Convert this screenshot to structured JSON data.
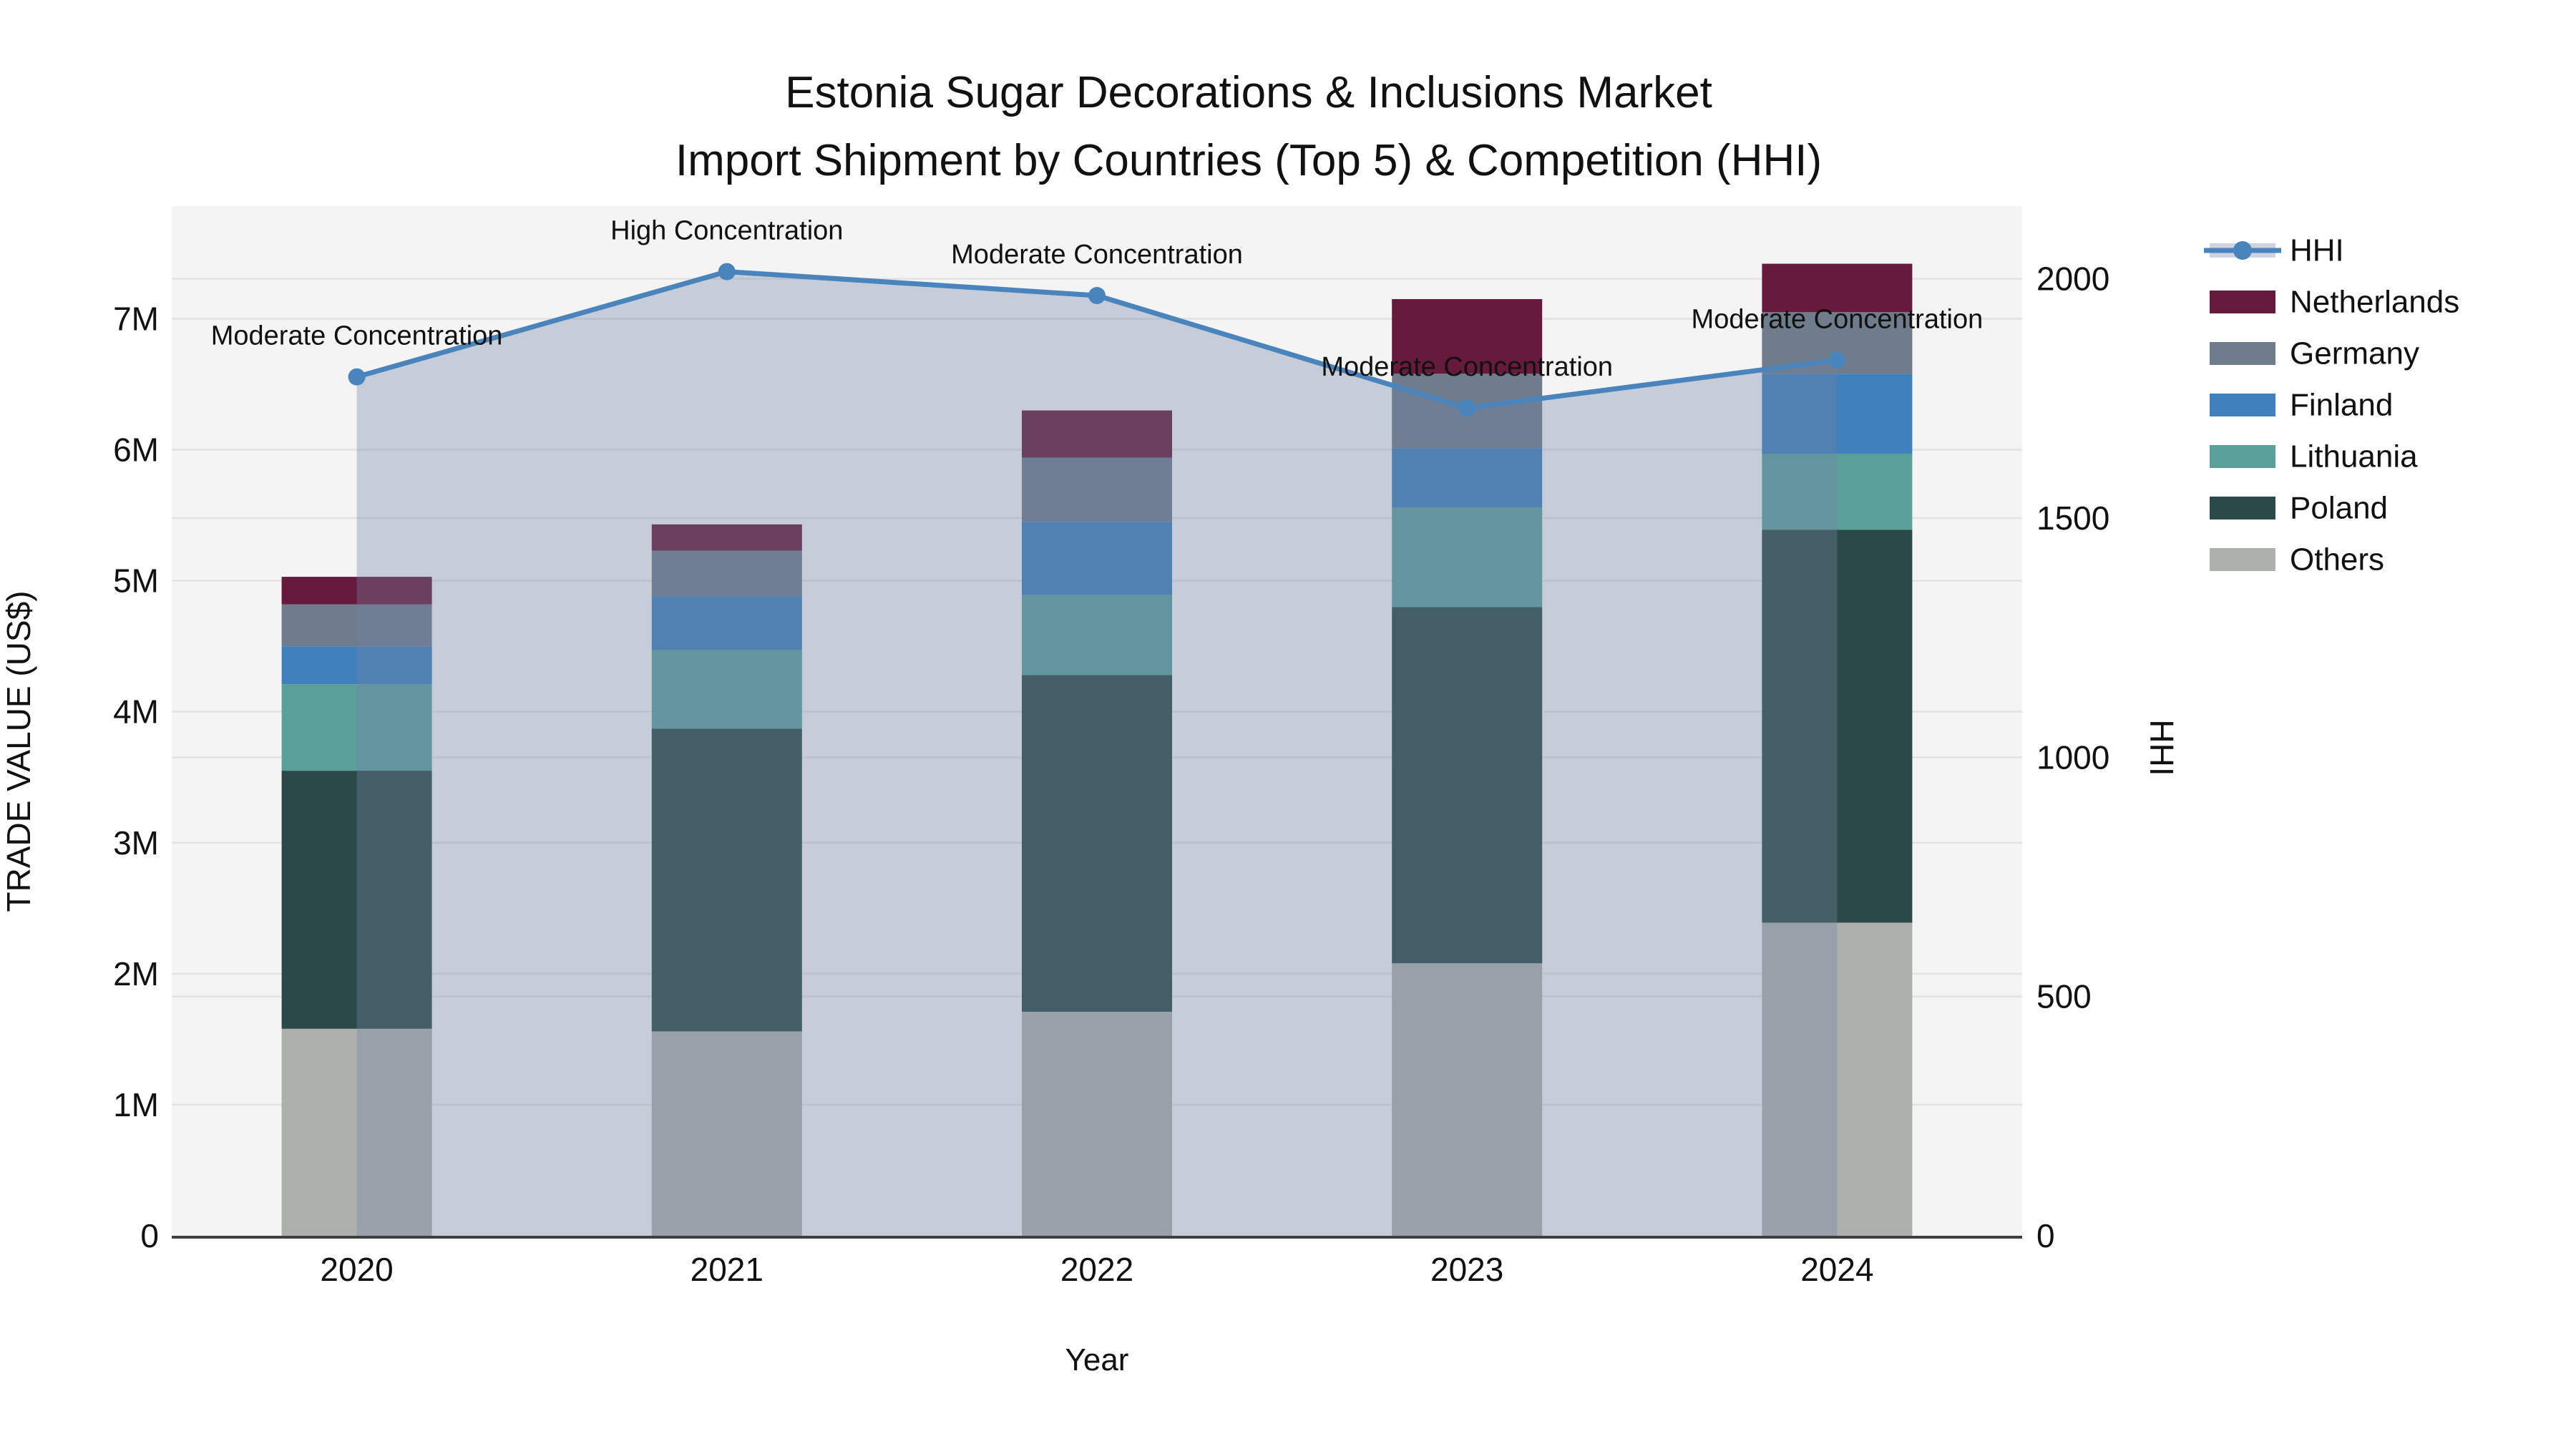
{
  "title": {
    "line1": "Estonia Sugar Decorations & Inclusions Market",
    "line2": "Import Shipment by Countries (Top 5) & Competition (HHI)"
  },
  "axes": {
    "x": {
      "label": "Year",
      "categories": [
        "2020",
        "2021",
        "2022",
        "2023",
        "2024"
      ]
    },
    "y_left": {
      "label": "TRADE VALUE (US$)",
      "ticks": [
        {
          "label": "0",
          "value": 0
        },
        {
          "label": "1M",
          "value": 1
        },
        {
          "label": "2M",
          "value": 2
        },
        {
          "label": "3M",
          "value": 3
        },
        {
          "label": "4M",
          "value": 4
        },
        {
          "label": "5M",
          "value": 5
        },
        {
          "label": "6M",
          "value": 6
        },
        {
          "label": "7M",
          "value": 7
        }
      ]
    },
    "y_right": {
      "label": "HHI",
      "ticks": [
        {
          "label": "0",
          "value": 0
        },
        {
          "label": "500",
          "value": 500
        },
        {
          "label": "1000",
          "value": 1000
        },
        {
          "label": "1500",
          "value": 1500
        },
        {
          "label": "2000",
          "value": 2000
        }
      ]
    }
  },
  "legend": [
    {
      "label": "HHI",
      "type": "line",
      "color": "#4a84bd"
    },
    {
      "label": "Netherlands",
      "type": "swatch",
      "color": "#671b3c"
    },
    {
      "label": "Germany",
      "type": "swatch",
      "color": "#6e7c8b"
    },
    {
      "label": "Finland",
      "type": "swatch",
      "color": "#4080bc"
    },
    {
      "label": "Lithuania",
      "type": "swatch",
      "color": "#5b9f9b"
    },
    {
      "label": "Poland",
      "type": "swatch",
      "color": "#2b4a47"
    },
    {
      "label": "Others",
      "type": "swatch",
      "color": "#aeb0ae"
    }
  ],
  "chart_data": {
    "type": "bar",
    "subtype": "stacked-bars-with-secondary-line",
    "categories": [
      "2020",
      "2021",
      "2022",
      "2023",
      "2024"
    ],
    "bar_value_unit": "million US$",
    "stack_order_bottom_to_top": [
      "Others",
      "Poland",
      "Lithuania",
      "Finland",
      "Germany",
      "Netherlands"
    ],
    "series": [
      {
        "name": "Others",
        "color": "#aeb0ae",
        "values": [
          1.58,
          1.56,
          1.71,
          2.08,
          2.39
        ]
      },
      {
        "name": "Poland",
        "color": "#2b4a47",
        "values": [
          1.97,
          2.31,
          2.57,
          2.72,
          3.0
        ]
      },
      {
        "name": "Lithuania",
        "color": "#5b9f9b",
        "values": [
          0.66,
          0.6,
          0.61,
          0.76,
          0.58
        ]
      },
      {
        "name": "Finland",
        "color": "#4080bc",
        "values": [
          0.29,
          0.41,
          0.56,
          0.45,
          0.61
        ]
      },
      {
        "name": "Germany",
        "color": "#6e7c8b",
        "values": [
          0.32,
          0.35,
          0.49,
          0.57,
          0.47
        ]
      },
      {
        "name": "Netherlands",
        "color": "#671b3c",
        "values": [
          0.21,
          0.2,
          0.36,
          0.57,
          0.37
        ]
      }
    ],
    "bar_totals": [
      5.03,
      5.43,
      6.3,
      7.15,
      7.42
    ],
    "line_series": {
      "name": "HHI",
      "axis": "right",
      "color": "#4a84bd",
      "fill_color": "#7483a2",
      "fill_opacity": 0.35,
      "values": [
        1795,
        2015,
        1965,
        1730,
        1830
      ]
    },
    "annotations": [
      {
        "category": "2020",
        "text": "Moderate Concentration"
      },
      {
        "category": "2021",
        "text": "High Concentration"
      },
      {
        "category": "2022",
        "text": "Moderate Concentration"
      },
      {
        "category": "2023",
        "text": "Moderate Concentration"
      },
      {
        "category": "2024",
        "text": "Moderate Concentration"
      }
    ],
    "ylim_left": [
      0,
      7.86
    ],
    "ylim_right": [
      0,
      2152
    ],
    "grid": true,
    "legend_position": "right"
  },
  "colors": {
    "plot_background": "#f4f4f4",
    "page_background": "#ffffff",
    "gridline": "#e2e2e2",
    "axis_line": "#3f3f3f",
    "text": "#111111"
  }
}
